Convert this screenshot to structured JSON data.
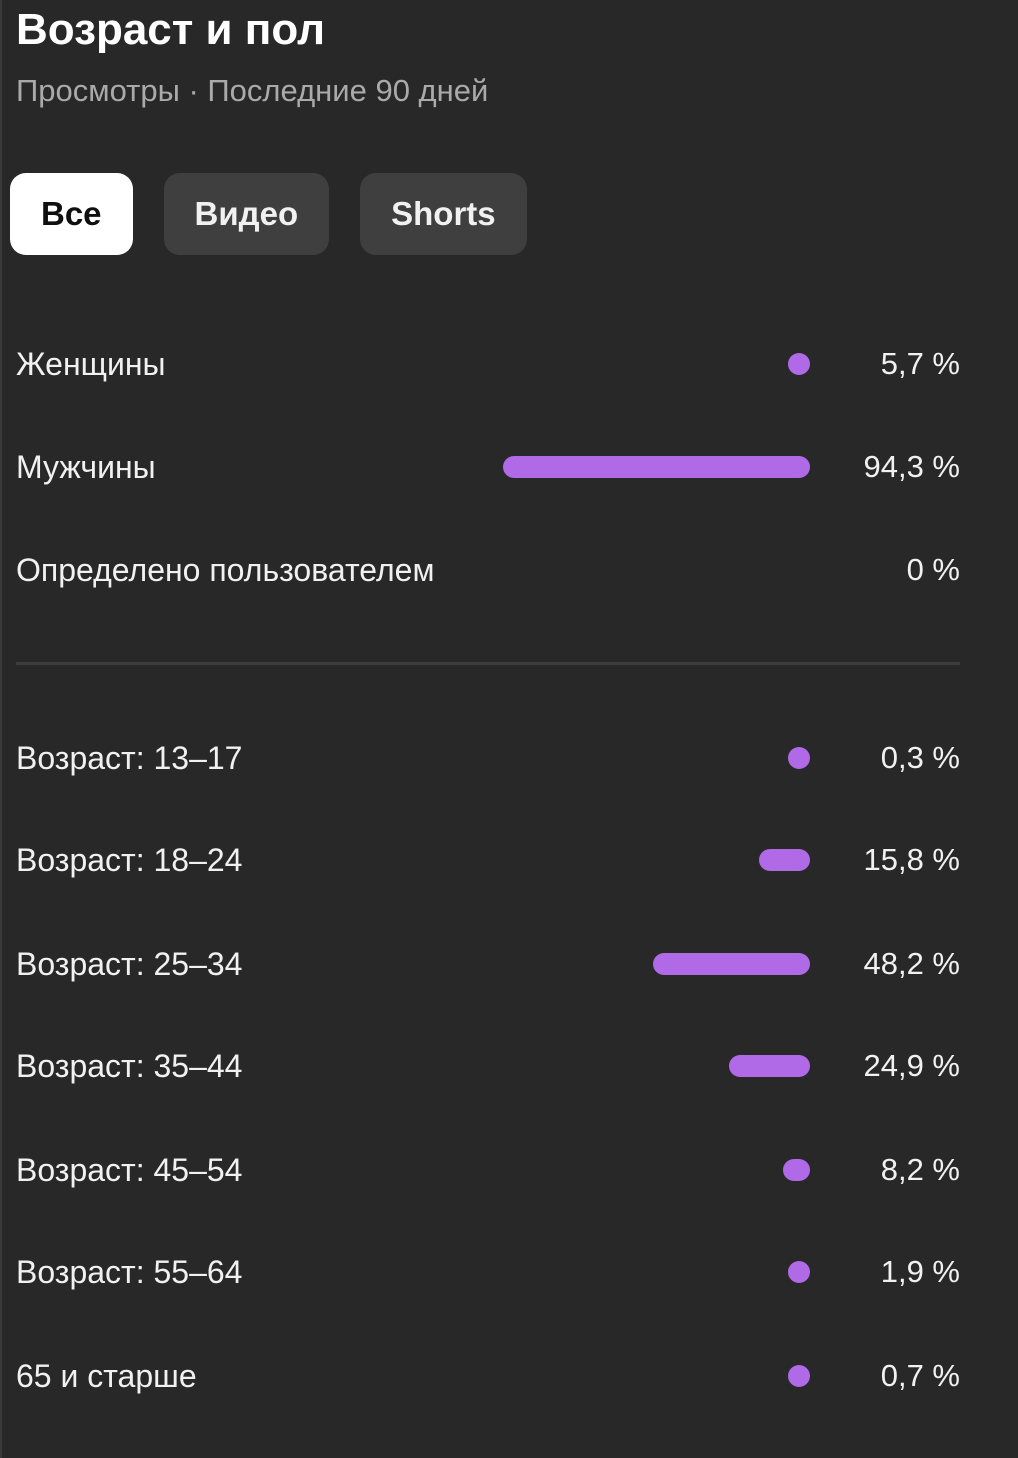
{
  "header": {
    "title": "Возраст и пол",
    "subtitle": "Просмотры · Последние 90 дней"
  },
  "tabs": [
    {
      "label": "Все",
      "selected": true
    },
    {
      "label": "Видео",
      "selected": false
    },
    {
      "label": "Shorts",
      "selected": false
    }
  ],
  "accent_color": "#b06ae8",
  "gender": [
    {
      "label": "Женщины",
      "value_text": "5,7 %",
      "value": 5.7
    },
    {
      "label": "Мужчины",
      "value_text": "94,3 %",
      "value": 94.3
    },
    {
      "label": "Определено пользователем",
      "value_text": "0 %",
      "value": 0
    }
  ],
  "age": [
    {
      "label": "Возраст: 13–17",
      "value_text": "0,3 %",
      "value": 0.3
    },
    {
      "label": "Возраст: 18–24",
      "value_text": "15,8 %",
      "value": 15.8
    },
    {
      "label": "Возраст: 25–34",
      "value_text": "48,2 %",
      "value": 48.2
    },
    {
      "label": "Возраст: 35–44",
      "value_text": "24,9 %",
      "value": 24.9
    },
    {
      "label": "Возраст: 45–54",
      "value_text": "8,2 %",
      "value": 8.2
    },
    {
      "label": "Возраст: 55–64",
      "value_text": "1,9 %",
      "value": 1.9
    },
    {
      "label": "65 и старше",
      "value_text": "0,7 %",
      "value": 0.7
    }
  ]
}
